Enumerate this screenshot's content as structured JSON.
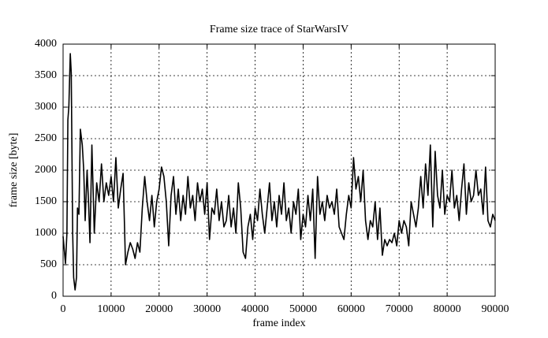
{
  "chart_data": {
    "type": "line",
    "title": "Frame size trace of StarWarsIV",
    "xlabel": "frame index",
    "ylabel": "frame size [byte]",
    "x": [
      0,
      500,
      800,
      1000,
      1200,
      1500,
      1700,
      2000,
      2200,
      2500,
      2800,
      3000,
      3300,
      3600,
      4000,
      4300,
      4600,
      5000,
      5300,
      5600,
      6000,
      6500,
      7000,
      7500,
      8000,
      8500,
      9000,
      9500,
      10000,
      10500,
      11000,
      11500,
      12000,
      12500,
      12800,
      13000,
      13500,
      14000,
      14500,
      15000,
      15500,
      16000,
      16500,
      17000,
      17500,
      18000,
      18500,
      19000,
      19500,
      20000,
      20500,
      21000,
      21500,
      22000,
      22500,
      23000,
      23500,
      24000,
      24500,
      25000,
      25500,
      26000,
      26500,
      27000,
      27500,
      28000,
      28500,
      29000,
      29500,
      30000,
      30500,
      31000,
      31500,
      32000,
      32500,
      33000,
      33500,
      34000,
      34500,
      35000,
      35500,
      36000,
      36500,
      37000,
      37500,
      38000,
      38500,
      39000,
      39500,
      40000,
      40500,
      41000,
      41500,
      42000,
      42500,
      43000,
      43500,
      44000,
      44500,
      45000,
      45500,
      46000,
      46500,
      47000,
      47500,
      48000,
      48500,
      49000,
      49500,
      50000,
      50500,
      51000,
      51500,
      52000,
      52500,
      53000,
      53500,
      54000,
      54500,
      55000,
      55500,
      56000,
      56500,
      57000,
      57500,
      58000,
      58500,
      59000,
      59500,
      60000,
      60500,
      61000,
      61500,
      62000,
      62500,
      63000,
      63500,
      64000,
      64500,
      65000,
      65500,
      66000,
      66500,
      67000,
      67500,
      68000,
      68500,
      69000,
      69500,
      70000,
      70500,
      71000,
      71500,
      72000,
      72500,
      73000,
      73500,
      74000,
      74500,
      75000,
      75500,
      76000,
      76500,
      77000,
      77500,
      78000,
      78500,
      79000,
      79500,
      80000,
      80500,
      81000,
      81500,
      82000,
      82500,
      83000,
      83500,
      84000,
      84500,
      85000,
      85500,
      86000,
      86500,
      87000,
      87500,
      88000,
      88500,
      89000,
      89500,
      90000
    ],
    "series": [
      {
        "name": "StarWarsIV",
        "color": "#000000",
        "values": [
          950,
          520,
          1000,
          2800,
          3000,
          3850,
          3550,
          1000,
          300,
          100,
          300,
          1400,
          1300,
          2650,
          2400,
          2000,
          1200,
          2000,
          1500,
          850,
          2400,
          1000,
          1800,
          1500,
          2100,
          1500,
          1800,
          1600,
          1900,
          1500,
          2200,
          1400,
          1700,
          1950,
          1100,
          500,
          700,
          850,
          750,
          600,
          850,
          700,
          1400,
          1900,
          1500,
          1200,
          1600,
          1100,
          1500,
          1700,
          2050,
          1900,
          1500,
          800,
          1600,
          1900,
          1300,
          1700,
          1200,
          1600,
          1300,
          1900,
          1400,
          1600,
          1200,
          1800,
          1500,
          1700,
          1300,
          1800,
          900,
          1400,
          1300,
          1700,
          1200,
          1500,
          1100,
          1200,
          1600,
          1100,
          1400,
          1000,
          1800,
          1400,
          700,
          600,
          1100,
          1300,
          900,
          1400,
          1200,
          1700,
          1300,
          1000,
          1400,
          1800,
          1200,
          1500,
          1100,
          1600,
          1300,
          1800,
          1200,
          1400,
          1000,
          1500,
          1300,
          1700,
          900,
          1300,
          1100,
          1600,
          1200,
          1700,
          600,
          1900,
          1300,
          1500,
          1200,
          1600,
          1400,
          1500,
          1300,
          1700,
          1100,
          1000,
          900,
          1300,
          1600,
          1400,
          2200,
          1700,
          1900,
          1500,
          2000,
          1200,
          900,
          1200,
          1100,
          1500,
          900,
          1400,
          650,
          900,
          800,
          900,
          850,
          1000,
          800,
          1200,
          1000,
          1200,
          1100,
          800,
          1500,
          1300,
          1100,
          1400,
          1900,
          1400,
          2100,
          1600,
          2400,
          1100,
          2300,
          1600,
          1400,
          2000,
          1300,
          1600,
          1500,
          2000,
          1400,
          1600,
          1200,
          1700,
          2100,
          1300,
          1800,
          1500,
          1600,
          2000,
          1600,
          1700,
          1300,
          2050,
          1200,
          1100,
          1300,
          1200
        ]
      }
    ],
    "xlim": [
      0,
      90000
    ],
    "ylim": [
      0,
      4000
    ],
    "xticks": [
      0,
      10000,
      20000,
      30000,
      40000,
      50000,
      60000,
      70000,
      80000,
      90000
    ],
    "yticks": [
      0,
      500,
      1000,
      1500,
      2000,
      2500,
      3000,
      3500,
      4000
    ],
    "grid": true
  }
}
